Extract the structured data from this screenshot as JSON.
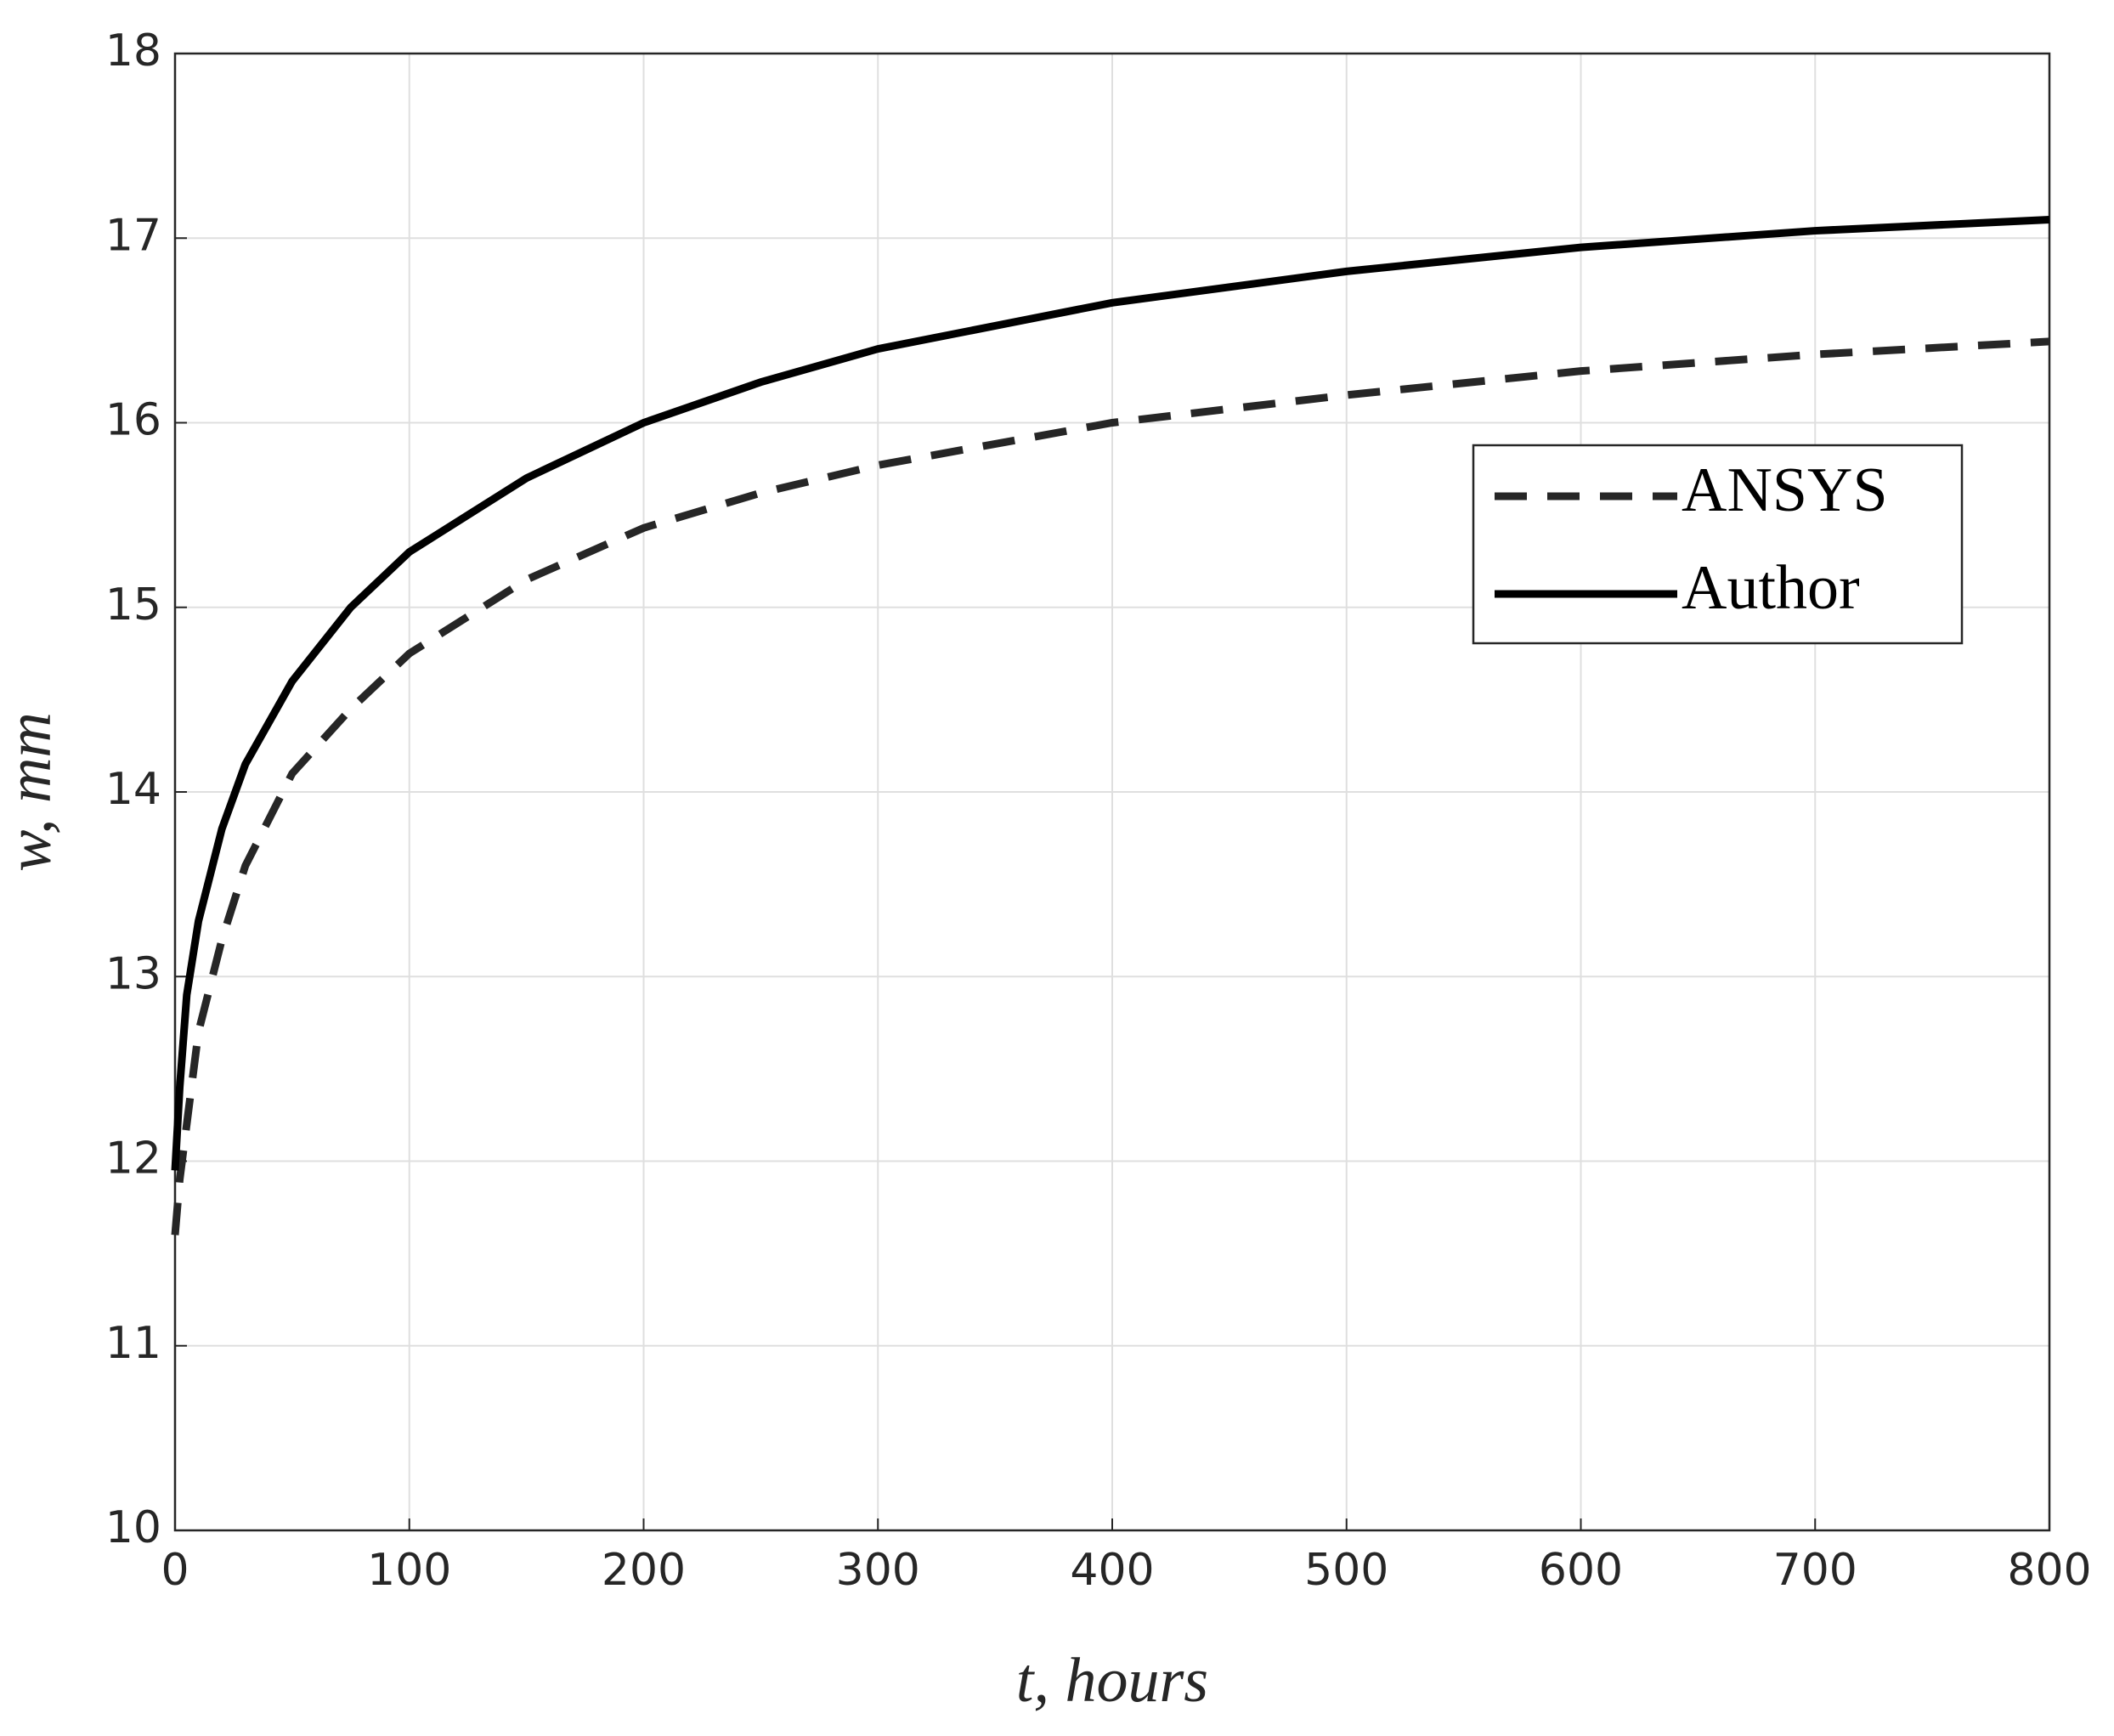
{
  "chart_data": {
    "type": "line",
    "xlabel": "t, hours",
    "ylabel": "w, mm",
    "x": [
      0,
      2,
      5,
      10,
      20,
      30,
      50,
      75,
      100,
      150,
      200,
      250,
      300,
      400,
      500,
      600,
      700,
      800
    ],
    "series": [
      {
        "name": "ANSYS",
        "color": "#262626",
        "linestyle": "dashed",
        "values": [
          11.6,
          11.9,
          12.2,
          12.7,
          13.2,
          13.6,
          14.1,
          14.45,
          14.75,
          15.15,
          15.43,
          15.62,
          15.77,
          16.0,
          16.15,
          16.28,
          16.37,
          16.44
        ]
      },
      {
        "name": "Author",
        "color": "#000000",
        "linestyle": "solid",
        "values": [
          11.95,
          12.4,
          12.9,
          13.3,
          13.8,
          14.15,
          14.6,
          15.0,
          15.3,
          15.7,
          16.0,
          16.22,
          16.4,
          16.65,
          16.82,
          16.95,
          17.04,
          17.1
        ]
      }
    ],
    "xlim": [
      0,
      800
    ],
    "xticks": [
      0,
      100,
      200,
      300,
      400,
      500,
      600,
      700,
      800
    ],
    "ylim": [
      10,
      18
    ],
    "yticks": [
      10,
      11,
      12,
      13,
      14,
      15,
      16,
      17,
      18
    ],
    "grid": true,
    "legend": "east"
  }
}
